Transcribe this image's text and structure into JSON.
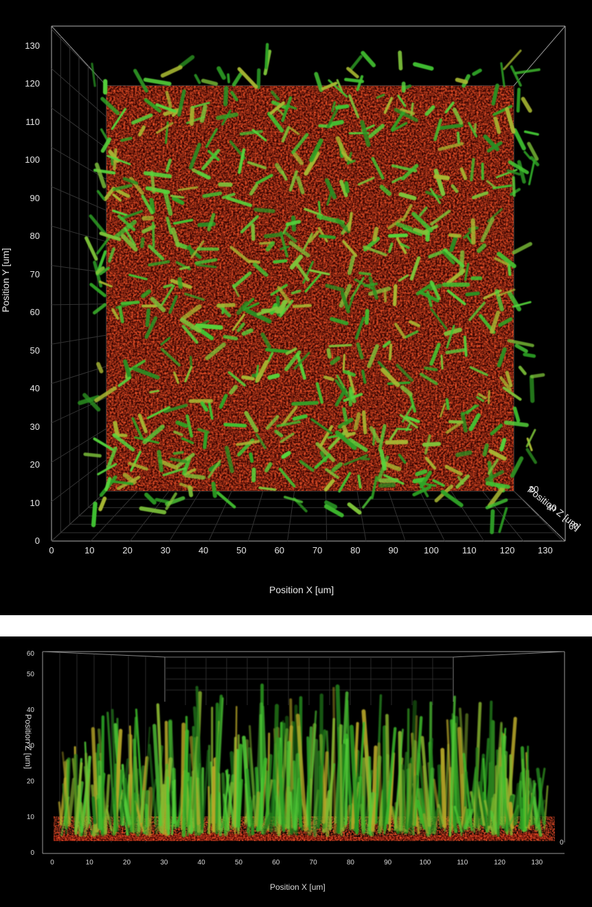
{
  "top_view": {
    "x_axis_label": "Position X [um]",
    "y_axis_label": "Position Y [um]",
    "z_axis_label": "Position Z [um]",
    "x_ticks": [
      "0",
      "10",
      "20",
      "30",
      "40",
      "50",
      "60",
      "70",
      "80",
      "90",
      "100",
      "110",
      "120",
      "130"
    ],
    "y_ticks": [
      "0",
      "10",
      "20",
      "30",
      "40",
      "50",
      "60",
      "70",
      "80",
      "90",
      "100",
      "110",
      "120",
      "130"
    ],
    "z_ticks": [
      "20",
      "40",
      "60"
    ]
  },
  "side_view": {
    "x_axis_label": "Position X [um]",
    "z_axis_label": "Position Z [um]",
    "x_ticks": [
      "0",
      "10",
      "20",
      "30",
      "40",
      "50",
      "60",
      "70",
      "80",
      "90",
      "100",
      "110",
      "120",
      "130"
    ],
    "z_ticks": [
      "0",
      "10",
      "20",
      "30",
      "40",
      "50",
      "60"
    ],
    "depth_tick": "0"
  },
  "colors": {
    "background": "#000000",
    "red_channel": "#c01808",
    "green_channel": "#3cb82a",
    "yellow_overlap": "#b8a020",
    "axis_lines": "#9a9a9a"
  }
}
